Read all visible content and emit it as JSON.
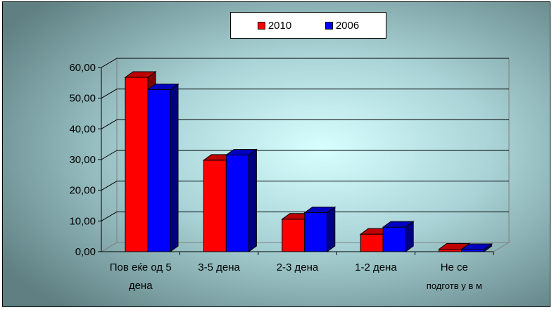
{
  "chart_data": {
    "type": "bar",
    "categories": [
      "Повеќе од 5 дена",
      "3-5 дена",
      "2-3 дена",
      "1-2 дена",
      "Не се подготвувам"
    ],
    "category_lines": [
      [
        "Пов еќе од 5",
        "дена"
      ],
      [
        "3-5 дена"
      ],
      [
        "2-3 дена"
      ],
      [
        "1-2 дена"
      ],
      [
        "Не се",
        "подготв у в м"
      ]
    ],
    "series": [
      {
        "name": "2010",
        "values": [
          56.8,
          29.8,
          10.6,
          5.7,
          0.8
        ],
        "color": "#ff0000",
        "top_color": "#c00000",
        "side_color": "#800000"
      },
      {
        "name": "2006",
        "values": [
          52.8,
          31.5,
          12.7,
          8.0,
          0.7
        ],
        "color": "#0000ff",
        "top_color": "#0000c0",
        "side_color": "#000080"
      }
    ],
    "ytick_labels": [
      "0,00",
      "10,00",
      "20,00",
      "30,00",
      "40,00",
      "50,00",
      "60,00"
    ],
    "ylim": [
      0,
      60
    ],
    "ystep": 10,
    "grid": true,
    "legend_position": "top"
  }
}
